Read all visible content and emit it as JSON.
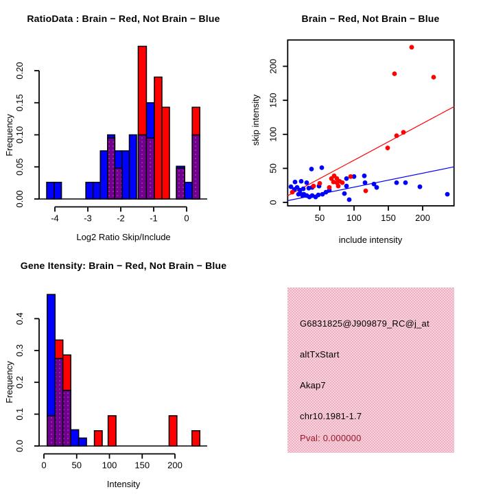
{
  "colors": {
    "red": "#ff0000",
    "blue": "#0000ff",
    "purple": "#71008f",
    "purple_dot": "#a546c2",
    "axis": "#000000",
    "info_box_pink": "#f4c3d0",
    "pval_text": "#9b1528"
  },
  "panels": {
    "ratio_hist": {
      "title": "RatioData : Brain − Red, Not Brain − Blue",
      "xlabel": "Log2 Ratio Skip/Include",
      "ylabel": "Frequency"
    },
    "scatter": {
      "title": "Brain − Red, Not Brain − Blue",
      "xlabel": "include intensity",
      "ylabel": "skip intensity"
    },
    "gene_hist": {
      "title": "Gene Itensity: Brain − Red, Not Brain − Blue",
      "xlabel": "Intensity",
      "ylabel": "Frequency"
    },
    "info_box": {
      "probe_id": "G6831825@J909879_RC@j_at",
      "splice_type": "altTxStart",
      "gene_symbol": "Akap7",
      "locus": "chr10.1981-1.7",
      "pval": "Pval: 0.000000"
    }
  },
  "chart_data": [
    {
      "id": "ratio_hist",
      "type": "bar",
      "subtype": "overlaid-histograms",
      "title": "RatioData : Brain − Red, Not Brain − Blue",
      "xlabel": "Log2 Ratio Skip/Include",
      "ylabel": "Frequency",
      "xlim": [
        -4.48,
        0.63
      ],
      "ylim": [
        0,
        0.246
      ],
      "xticks": [
        -4,
        -3,
        -2,
        -1,
        0
      ],
      "xtick_labels": [
        "-4",
        "-3",
        "-2",
        "-1",
        "0"
      ],
      "yticks": [
        0.0,
        0.05,
        0.1,
        0.15,
        0.2
      ],
      "ytick_labels": [
        "0.00",
        "0.05",
        "0.10",
        "0.15",
        "0.20"
      ],
      "blue_bars": [
        {
          "x0": -4.25,
          "x1": -4.02,
          "h": 0.026
        },
        {
          "x0": -4.02,
          "x1": -3.8,
          "h": 0.026
        },
        {
          "x0": -3.06,
          "x1": -2.84,
          "h": 0.026
        },
        {
          "x0": -2.84,
          "x1": -2.62,
          "h": 0.026
        },
        {
          "x0": -2.62,
          "x1": -2.4,
          "h": 0.075
        },
        {
          "x0": -2.4,
          "x1": -2.18,
          "h": 0.1
        },
        {
          "x0": -2.18,
          "x1": -1.96,
          "h": 0.075
        },
        {
          "x0": -1.96,
          "x1": -1.74,
          "h": 0.075
        },
        {
          "x0": -1.74,
          "x1": -1.52,
          "h": 0.1
        },
        {
          "x0": -1.47,
          "x1": -1.22,
          "h": 0.1
        },
        {
          "x0": -1.22,
          "x1": -0.98,
          "h": 0.15
        },
        {
          "x0": -0.31,
          "x1": -0.06,
          "h": 0.051
        },
        {
          "x0": -0.06,
          "x1": 0.17,
          "h": 0.026
        },
        {
          "x0": 0.17,
          "x1": 0.4,
          "h": 0.1
        }
      ],
      "red_bars": [
        {
          "x0": -2.4,
          "x1": -2.18,
          "h": 0.095
        },
        {
          "x0": -2.18,
          "x1": -1.96,
          "h": 0.048
        },
        {
          "x0": -1.47,
          "x1": -1.22,
          "h": 0.238
        },
        {
          "x0": -1.22,
          "x1": -0.98,
          "h": 0.095
        },
        {
          "x0": -0.98,
          "x1": -0.75,
          "h": 0.19
        },
        {
          "x0": -0.75,
          "x1": -0.52,
          "h": 0.143
        },
        {
          "x0": -0.31,
          "x1": -0.06,
          "h": 0.048
        },
        {
          "x0": 0.17,
          "x1": 0.4,
          "h": 0.143
        }
      ]
    },
    {
      "id": "scatter",
      "type": "scatter",
      "title": "Brain − Red, Not Brain − Blue",
      "xlabel": "include intensity",
      "ylabel": "skip intensity",
      "xlim": [
        3,
        246
      ],
      "ylim": [
        -5,
        239
      ],
      "xticks": [
        50,
        100,
        150,
        200
      ],
      "xtick_labels": [
        "50",
        "100",
        "150",
        "200"
      ],
      "yticks": [
        0,
        50,
        100,
        150,
        200
      ],
      "ytick_labels": [
        "0",
        "50",
        "100",
        "150",
        "200"
      ],
      "blue_points": [
        [
          8,
          23
        ],
        [
          13,
          19
        ],
        [
          14,
          30
        ],
        [
          17,
          22
        ],
        [
          19,
          12
        ],
        [
          21,
          18
        ],
        [
          22,
          13
        ],
        [
          23,
          31
        ],
        [
          25,
          10
        ],
        [
          26,
          20
        ],
        [
          27,
          12
        ],
        [
          31,
          10
        ],
        [
          31,
          29
        ],
        [
          34,
          21
        ],
        [
          35,
          8
        ],
        [
          38,
          49
        ],
        [
          39,
          10
        ],
        [
          39,
          22
        ],
        [
          44,
          8
        ],
        [
          48,
          11
        ],
        [
          49,
          24
        ],
        [
          53,
          51
        ],
        [
          54,
          12
        ],
        [
          59,
          15
        ],
        [
          64,
          18
        ],
        [
          86,
          13
        ],
        [
          89,
          24
        ],
        [
          89,
          35
        ],
        [
          93,
          4
        ],
        [
          100,
          38
        ],
        [
          115,
          39
        ],
        [
          116,
          29
        ],
        [
          129,
          27
        ],
        [
          133,
          22
        ],
        [
          162,
          29
        ],
        [
          175,
          29
        ],
        [
          196,
          23
        ],
        [
          236,
          12
        ]
      ],
      "red_points": [
        [
          10,
          15
        ],
        [
          41,
          24
        ],
        [
          50,
          28
        ],
        [
          64,
          22
        ],
        [
          67,
          35
        ],
        [
          70,
          30
        ],
        [
          71,
          39
        ],
        [
          75,
          29
        ],
        [
          75,
          35
        ],
        [
          77,
          24
        ],
        [
          79,
          31
        ],
        [
          83,
          29
        ],
        [
          95,
          38
        ],
        [
          117,
          17
        ],
        [
          149,
          80
        ],
        [
          162,
          98
        ],
        [
          172,
          103
        ],
        [
          159,
          189
        ],
        [
          184,
          228
        ],
        [
          216,
          184
        ]
      ],
      "fit_lines": [
        {
          "series": "brain-red",
          "slope": 0.54,
          "intercept": 8.0,
          "color_key": "red"
        },
        {
          "series": "notbrain-blue",
          "slope": 0.205,
          "intercept": 1.9,
          "color_key": "blue"
        }
      ]
    },
    {
      "id": "gene_hist",
      "type": "bar",
      "subtype": "overlaid-histograms",
      "title": "Gene Itensity: Brain − Red, Not Brain − Blue",
      "xlabel": "Intensity",
      "ylabel": "Frequency",
      "xlim": [
        -7,
        249
      ],
      "ylim": [
        0,
        0.496
      ],
      "xticks": [
        0,
        50,
        100,
        150,
        200
      ],
      "xtick_labels": [
        "0",
        "50",
        "100",
        "150",
        "200"
      ],
      "yticks": [
        0.0,
        0.1,
        0.2,
        0.3,
        0.4
      ],
      "ytick_labels": [
        "0.0",
        "0.1",
        "0.2",
        "0.3",
        "0.4"
      ],
      "blue_bars": [
        {
          "x0": 5,
          "x1": 17,
          "h": 0.476
        },
        {
          "x0": 17,
          "x1": 29,
          "h": 0.275
        },
        {
          "x0": 29,
          "x1": 41,
          "h": 0.175
        },
        {
          "x0": 41,
          "x1": 53,
          "h": 0.051
        },
        {
          "x0": 53,
          "x1": 65,
          "h": 0.025
        }
      ],
      "red_bars": [
        {
          "x0": 5,
          "x1": 17,
          "h": 0.095
        },
        {
          "x0": 17,
          "x1": 29,
          "h": 0.333
        },
        {
          "x0": 29,
          "x1": 41,
          "h": 0.286
        },
        {
          "x0": 77,
          "x1": 89,
          "h": 0.048
        },
        {
          "x0": 98,
          "x1": 110,
          "h": 0.095
        },
        {
          "x0": 191,
          "x1": 203,
          "h": 0.095
        },
        {
          "x0": 226,
          "x1": 238,
          "h": 0.048
        }
      ]
    }
  ]
}
